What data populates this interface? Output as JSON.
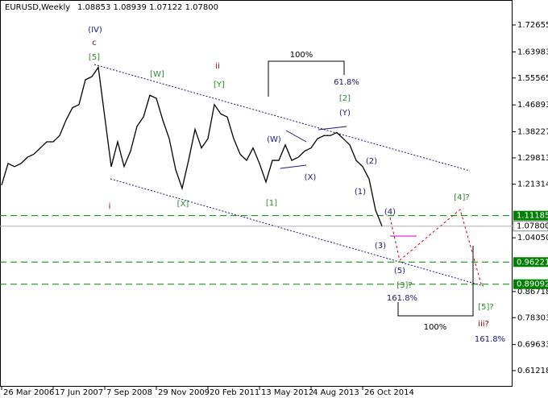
{
  "chart_data": {
    "type": "line",
    "title": "EURUSD,Weekly",
    "subtitle": "1.08853 1.08939 1.07122 1.07800",
    "categories": [
      "26 Mar 2006",
      null,
      null,
      null,
      null,
      null,
      null,
      null,
      "17 Jun 2007",
      null,
      null,
      null,
      null,
      null,
      null,
      null,
      "7 Sep 2008",
      null,
      null,
      null,
      null,
      null,
      null,
      null,
      "29 Nov 2009",
      null,
      null,
      null,
      null,
      null,
      null,
      null,
      "20 Feb 2011",
      null,
      null,
      null,
      null,
      null,
      null,
      null,
      "13 May 2012",
      null,
      null,
      null,
      null,
      null,
      null,
      null,
      "4 Aug 2013",
      null,
      null,
      null,
      null,
      null,
      null,
      null,
      "26 Oct 2014",
      null,
      null,
      null
    ],
    "values": [
      1.21,
      1.28,
      1.27,
      1.28,
      1.3,
      1.31,
      1.33,
      1.35,
      1.35,
      1.37,
      1.42,
      1.46,
      1.47,
      1.55,
      1.56,
      1.59,
      1.43,
      1.27,
      1.35,
      1.27,
      1.32,
      1.4,
      1.43,
      1.5,
      1.49,
      1.42,
      1.36,
      1.26,
      1.2,
      1.29,
      1.39,
      1.33,
      1.36,
      1.47,
      1.44,
      1.43,
      1.36,
      1.31,
      1.29,
      1.33,
      1.28,
      1.22,
      1.29,
      1.29,
      1.34,
      1.29,
      1.3,
      1.32,
      1.33,
      1.36,
      1.37,
      1.37,
      1.38,
      1.36,
      1.34,
      1.29,
      1.27,
      1.23,
      1.13,
      1.078
    ],
    "color": "#000000",
    "ylim": [
      0.5655,
      1.7993
    ],
    "yticks": [
      1.72655,
      1.63983,
      1.55565,
      1.46893,
      1.38227,
      1.29813,
      1.21314,
      {
        "value": 1.0405,
        "label": "1.04050"
      },
      0.86718,
      0.78303,
      0.69633,
      0.61218
    ],
    "levels": [
      1.11185,
      0.96221,
      0.89092
    ],
    "level_color": "#008000",
    "last_price": {
      "value": 1.078,
      "label": "1.07800"
    },
    "annotations": [
      "(IV)",
      "c",
      "[5]",
      "[W]",
      "ii",
      "[Y]",
      "100%",
      "61.8%",
      "[2]",
      "(Y)",
      "(W)",
      "(X)",
      "(2)",
      "(1)",
      "(4)",
      "(3)",
      "(5)",
      "[3]?",
      "161.8%",
      "[4]?",
      "[5]?",
      "iii?",
      "161.8%",
      "100%",
      "i",
      "[X]",
      "[1]"
    ]
  }
}
